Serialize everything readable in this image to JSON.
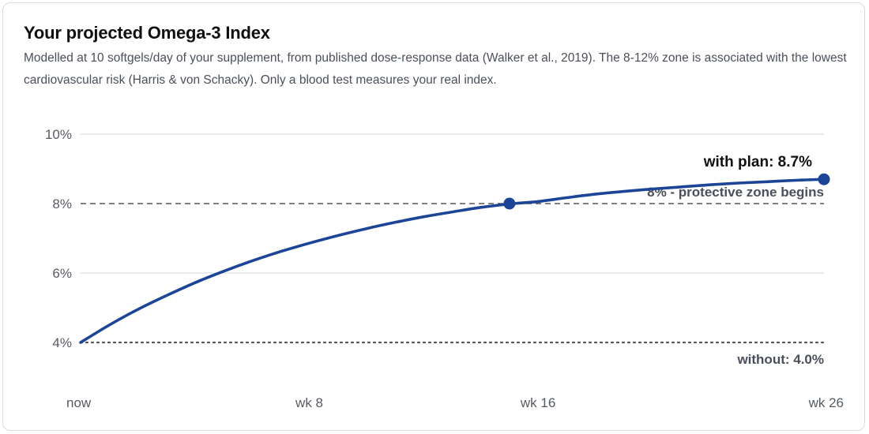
{
  "header": {
    "title": "Your projected Omega-3 Index",
    "subtitle": "Modelled at 10 softgels/day of your supplement, from published dose-response data (Walker et al., 2019). The 8-12% zone is associated with the lowest cardiovascular risk (Harris & von Schacky). Only a blood test measures your real index."
  },
  "colors": {
    "line": "#1d4597",
    "grid": "#dcdde0",
    "reference": "#555555",
    "tick_text": "#555a63",
    "label_dark": "#111111",
    "label_muted": "#4a4f5a"
  },
  "chart_data": {
    "type": "line",
    "x_unit": "weeks",
    "x_ticks": [
      {
        "value": 0,
        "label": "now"
      },
      {
        "value": 8,
        "label": "wk 8"
      },
      {
        "value": 16,
        "label": "wk 16"
      },
      {
        "value": 26,
        "label": "wk 26"
      }
    ],
    "y_ticks": [
      {
        "value": 4,
        "label": "4%"
      },
      {
        "value": 6,
        "label": "6%"
      },
      {
        "value": 8,
        "label": "8%"
      },
      {
        "value": 10,
        "label": "10%"
      }
    ],
    "xlim": [
      0,
      26
    ],
    "ylim": [
      4,
      10
    ],
    "grid": true,
    "series": [
      {
        "x": [
          0,
          1,
          2,
          3,
          4,
          5,
          6,
          7,
          8,
          9,
          10,
          11,
          12,
          13,
          14,
          15,
          16,
          17,
          18,
          19,
          20,
          21,
          22,
          23,
          24,
          25,
          26
        ],
        "values": [
          4.0,
          4.5,
          4.95,
          5.35,
          5.72,
          6.05,
          6.35,
          6.62,
          6.86,
          7.08,
          7.28,
          7.46,
          7.62,
          7.76,
          7.89,
          7.99,
          8.06,
          8.17,
          8.27,
          8.35,
          8.42,
          8.48,
          8.54,
          8.59,
          8.63,
          8.67,
          8.7
        ],
        "markers": [
          {
            "x": 15,
            "y": 8.0
          },
          {
            "x": 26,
            "y": 8.7
          }
        ]
      }
    ],
    "reference_lines": [
      {
        "y": 8,
        "style": "dashed",
        "label": "8% - protective zone begins"
      },
      {
        "y": 4,
        "style": "dotted",
        "label": "without: 4.0%"
      }
    ],
    "annotations": [
      {
        "x": 26,
        "y": 8.7,
        "text": "with plan: 8.7%"
      }
    ]
  }
}
